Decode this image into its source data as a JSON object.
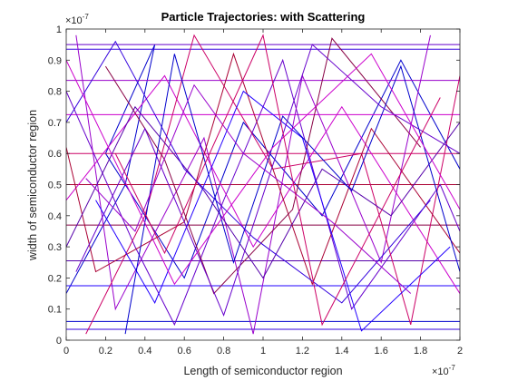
{
  "chart_data": {
    "type": "line",
    "title": "Particle Trajectories: with Scattering",
    "xlabel": "Length of semiconductor region",
    "ylabel": "width of semiconductor region",
    "x_ticks": [
      "0",
      "0.2",
      "0.4",
      "0.6",
      "0.8",
      "1",
      "1.2",
      "1.4",
      "1.6",
      "1.8",
      "2"
    ],
    "y_ticks": [
      "0",
      "0.1",
      "0.2",
      "0.3",
      "0.4",
      "0.5",
      "0.6",
      "0.7",
      "0.8",
      "0.9",
      "1"
    ],
    "x_multiplier": {
      "base": "×10",
      "exponent": "-7"
    },
    "y_multiplier": {
      "base": "×10",
      "exponent": "-7"
    },
    "xlim": [
      0,
      2e-07
    ],
    "ylim": [
      0,
      1e-07
    ],
    "grid": false,
    "box": true,
    "line_colors": [
      "#0000cc",
      "#3300dd",
      "#6600cc",
      "#9900cc",
      "#cc00cc",
      "#cc0066",
      "#aa0033",
      "#880044",
      "#5500aa",
      "#2200ff"
    ],
    "series": [
      {
        "x": [
          0,
          3e-08,
          4.5e-08,
          2e-08,
          6e-08,
          9e-08,
          1.3e-07,
          1.7e-07,
          2e-07
        ],
        "y": [
          1.5e-08,
          5e-08,
          9.5e-08,
          6e-08,
          2e-08,
          7e-08,
          4e-08,
          9e-08,
          5.5e-08
        ]
      },
      {
        "x": [
          0,
          2e-07
        ],
        "y": [
          9.35e-08,
          9.35e-08
        ]
      },
      {
        "x": [
          0,
          2e-07
        ],
        "y": [
          9.5e-08,
          9.5e-08
        ]
      },
      {
        "x": [
          0,
          2e-07
        ],
        "y": [
          8.35e-08,
          8.35e-08
        ]
      },
      {
        "x": [
          0,
          2e-07
        ],
        "y": [
          7.25e-08,
          7.25e-08
        ]
      },
      {
        "x": [
          0,
          2e-07
        ],
        "y": [
          6e-08,
          6e-08
        ]
      },
      {
        "x": [
          0,
          2e-07
        ],
        "y": [
          5e-08,
          5e-08
        ]
      },
      {
        "x": [
          0,
          2e-07
        ],
        "y": [
          3.7e-08,
          3.7e-08
        ]
      },
      {
        "x": [
          0,
          2e-07
        ],
        "y": [
          2.55e-08,
          2.55e-08
        ]
      },
      {
        "x": [
          0,
          2e-07
        ],
        "y": [
          1.75e-08,
          1.75e-08
        ]
      },
      {
        "x": [
          0,
          2e-07
        ],
        "y": [
          6e-09,
          6e-09
        ]
      },
      {
        "x": [
          0,
          2e-07
        ],
        "y": [
          3.5e-09,
          3.5e-09
        ]
      },
      {
        "x": [
          0,
          3.5e-08,
          5.5e-08,
          8e-08,
          1.1e-07,
          1.45e-07,
          1.9e-07,
          2e-07
        ],
        "y": [
          8e-08,
          3e-08,
          5e-09,
          4.5e-08,
          9e-08,
          1e-08,
          5e-08,
          3.5e-08
        ]
      },
      {
        "x": [
          5e-09,
          2.5e-08,
          7e-08,
          9.5e-08,
          1.2e-07,
          1.6e-07,
          1.85e-07
        ],
        "y": [
          9.8e-08,
          1e-08,
          6.5e-08,
          2e-09,
          8.5e-08,
          2.5e-08,
          9.8e-08
        ]
      },
      {
        "x": [
          0,
          5e-08,
          9.5e-08,
          1.4e-07,
          2e-07
        ],
        "y": [
          4.5e-08,
          8.5e-08,
          3e-08,
          7.5e-08,
          1.5e-08
        ]
      },
      {
        "x": [
          1e-08,
          4e-08,
          6.5e-08,
          1.05e-07,
          1.5e-07,
          1.75e-07,
          2e-07
        ],
        "y": [
          2e-09,
          4e-08,
          9.8e-08,
          5.5e-08,
          6e-08,
          5e-09,
          8.5e-08
        ]
      },
      {
        "x": [
          0,
          1.5e-08,
          6e-08,
          8.5e-08,
          1.25e-07,
          1.55e-07,
          2e-07
        ],
        "y": [
          6.2e-08,
          2.2e-08,
          3.8e-08,
          9.2e-08,
          1.8e-08,
          6.8e-08,
          2.8e-08
        ]
      },
      {
        "x": [
          2e-08,
          5e-08,
          7.5e-08,
          1.15e-07,
          1.35e-07,
          1.8e-07
        ],
        "y": [
          8.8e-08,
          5.8e-08,
          1.5e-08,
          4.2e-08,
          9.7e-08,
          6.2e-08
        ]
      },
      {
        "x": [
          0,
          3.5e-08,
          7e-08,
          1e-07,
          1.3e-07,
          1.65e-07,
          2e-07
        ],
        "y": [
          3e-08,
          7.5e-08,
          4.8e-08,
          2e-08,
          5.5e-08,
          4e-08,
          7e-08
        ]
      },
      {
        "x": [
          1.5e-08,
          4.5e-08,
          9e-08,
          1.2e-07,
          1.5e-07,
          1.95e-07
        ],
        "y": [
          4.5e-08,
          1.2e-08,
          8e-08,
          6.5e-08,
          3e-09,
          3e-08
        ]
      },
      {
        "x": [
          3e-08,
          5.5e-08,
          8.5e-08,
          1.1e-07,
          1.45e-07,
          1.7e-07,
          2e-07
        ],
        "y": [
          2e-09,
          9.2e-08,
          2.5e-08,
          7.2e-08,
          4.8e-08,
          8.8e-08,
          2.2e-08
        ]
      },
      {
        "x": [
          0,
          2.5e-08,
          6e-08,
          9.5e-08,
          1.4e-07,
          1.85e-07
        ],
        "y": [
          7e-08,
          9.6e-08,
          5.5e-08,
          3.3e-08,
          1.2e-08,
          4.5e-08
        ]
      },
      {
        "x": [
          5e-09,
          4e-08,
          8e-08,
          1.25e-07,
          1.6e-07,
          2e-07
        ],
        "y": [
          2.2e-08,
          6.8e-08,
          8e-09,
          9.5e-08,
          7.5e-08,
          6e-08
        ]
      },
      {
        "x": [
          1e-08,
          3.5e-08,
          6.5e-08,
          9e-08,
          1.35e-07,
          1.75e-07
        ],
        "y": [
          5.2e-08,
          3.5e-08,
          8.2e-08,
          6e-08,
          3.8e-08,
          1.5e-08
        ]
      },
      {
        "x": [
          0,
          5.5e-08,
          1.05e-07,
          1.55e-07,
          2e-07
        ],
        "y": [
          9e-08,
          1.8e-08,
          6.2e-08,
          9.2e-08,
          4.2e-08
        ]
      },
      {
        "x": [
          2.5e-08,
          5e-08,
          1e-07,
          1.3e-07,
          1.9e-07
        ],
        "y": [
          6e-08,
          2.8e-08,
          9.8e-08,
          5e-09,
          7.8e-08
        ]
      }
    ]
  }
}
